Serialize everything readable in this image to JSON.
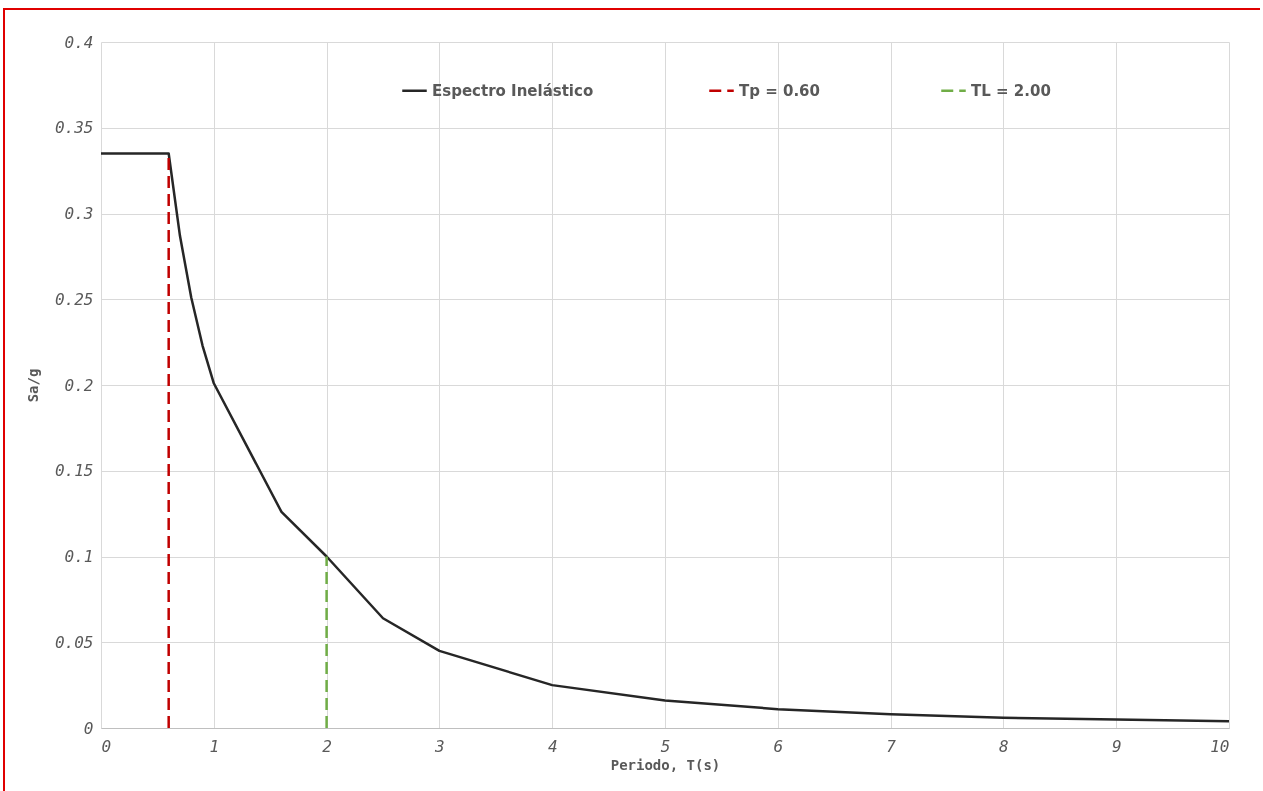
{
  "chart_data": {
    "type": "line",
    "xlabel": "Periodo, T(s)",
    "ylabel": "Sa/g",
    "series": [
      {
        "name": "Espectro Inelástico",
        "color": "#262626",
        "line_style": "solid",
        "x": [
          0,
          0.6,
          0.7,
          0.8,
          0.9,
          1,
          1.6,
          2,
          2.5,
          3,
          4,
          5,
          6,
          7,
          8,
          9,
          10
        ],
        "values": [
          0.335,
          0.335,
          0.287,
          0.251,
          0.223,
          0.201,
          0.126,
          0.1,
          0.064,
          0.045,
          0.025,
          0.016,
          0.011,
          0.008,
          0.006,
          0.005,
          0.004
        ]
      },
      {
        "name": "Tp =  0.60",
        "color": "#c00000",
        "line_style": "dashed",
        "type": "line",
        "x": [
          0.6,
          0.6
        ],
        "values": [
          0,
          0.335
        ]
      },
      {
        "name": "TL = 2.00",
        "color": "#70ad47",
        "line_style": "dashed",
        "type": "line",
        "x": [
          2,
          2
        ],
        "values": [
          0,
          0.1
        ]
      }
    ],
    "xlim": [
      0,
      10
    ],
    "xticks": [
      0,
      1,
      2,
      3,
      4,
      5,
      6,
      7,
      8,
      9,
      10
    ],
    "ylim": [
      0,
      0.4
    ],
    "yticks": [
      0,
      0.05,
      0.1,
      0.15,
      0.2,
      0.25,
      0.3,
      0.35,
      0.4
    ],
    "grid": true,
    "legend": "top",
    "marker": "none"
  }
}
